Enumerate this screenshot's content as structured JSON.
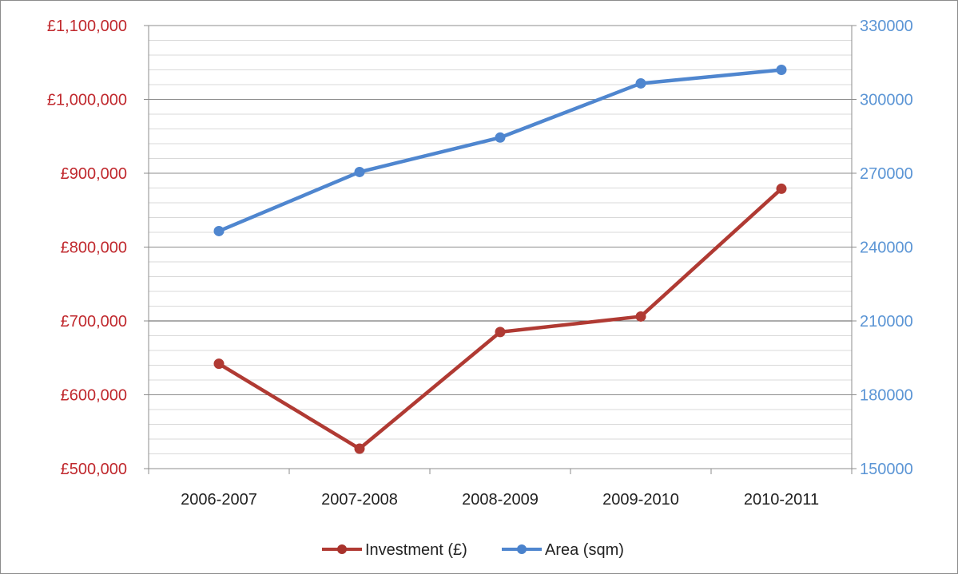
{
  "chart_data": {
    "type": "line",
    "categories": [
      "2006-2007",
      "2007-2008",
      "2008-2009",
      "2009-2010",
      "2010-2011"
    ],
    "series": [
      {
        "name": "Investment (£)",
        "axis": "left",
        "color": "#b03a33",
        "values": [
          642000,
          527000,
          685000,
          706000,
          879000
        ]
      },
      {
        "name": "Area (sqm)",
        "axis": "right",
        "color": "#4f86cf",
        "values": [
          246500,
          270500,
          284500,
          306500,
          312000
        ]
      }
    ],
    "y_left": {
      "range": [
        500000,
        1100000
      ],
      "ticks": [
        {
          "value": 500000,
          "label": "£500,000"
        },
        {
          "value": 600000,
          "label": "£600,000"
        },
        {
          "value": 700000,
          "label": "£700,000"
        },
        {
          "value": 800000,
          "label": "£800,000"
        },
        {
          "value": 900000,
          "label": "£900,000"
        },
        {
          "value": 1000000,
          "label": "£1,000,000"
        },
        {
          "value": 1100000,
          "label": "£1,100,000"
        }
      ],
      "color": "#c0282d"
    },
    "y_right": {
      "range": [
        150000,
        330000
      ],
      "ticks": [
        {
          "value": 150000,
          "label": "150000"
        },
        {
          "value": 180000,
          "label": "180000"
        },
        {
          "value": 210000,
          "label": "210000"
        },
        {
          "value": 240000,
          "label": "240000"
        },
        {
          "value": 270000,
          "label": "270000"
        },
        {
          "value": 300000,
          "label": "300000"
        },
        {
          "value": 330000,
          "label": "330000"
        }
      ],
      "color": "#5b95d5"
    },
    "grid": true,
    "legend_position": "bottom"
  }
}
